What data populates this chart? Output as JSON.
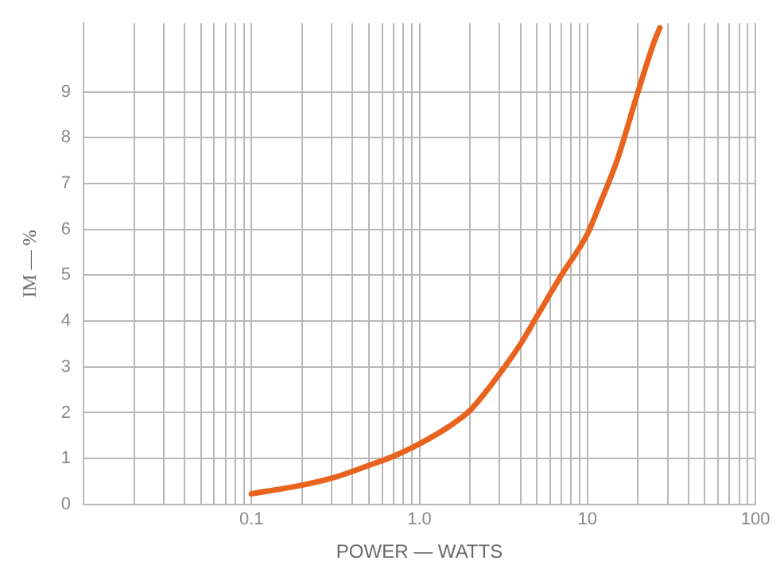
{
  "chart_data": {
    "type": "line",
    "xlabel": "POWER — WATTS",
    "ylabel": "IM — %",
    "log": "x",
    "xlim": [
      0.01,
      100
    ],
    "xticks": [
      {
        "value": 0.1,
        "label": "0.1"
      },
      {
        "value": 1,
        "label": "1.0"
      },
      10,
      100
    ],
    "ylim": [
      0,
      10.5
    ],
    "yticks": [
      0,
      1,
      2,
      3,
      4,
      5,
      6,
      7,
      8,
      9
    ],
    "grid": true,
    "legend": false,
    "marker": "none",
    "line_style": "solid",
    "series": [
      {
        "color": "#e8641e",
        "x": [
          0.1,
          0.2,
          0.3,
          0.5,
          0.7,
          1,
          1.5,
          2,
          3,
          4,
          5,
          7,
          10,
          12,
          15,
          20,
          25,
          27
        ],
        "values": [
          0.23,
          0.42,
          0.57,
          0.85,
          1.05,
          1.32,
          1.7,
          2.05,
          2.85,
          3.5,
          4.1,
          5.0,
          5.9,
          6.6,
          7.5,
          9.0,
          10.1,
          10.4
        ]
      }
    ]
  }
}
